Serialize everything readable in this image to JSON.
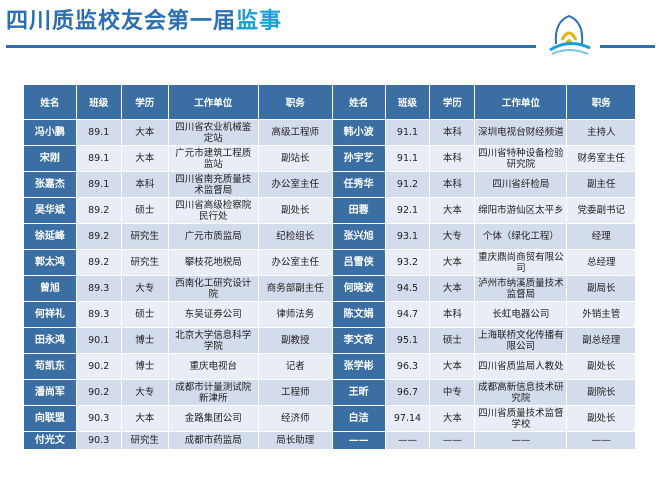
{
  "title": {
    "main": "四川质监校友会第一届",
    "highlight": "监事"
  },
  "headers": [
    "姓名",
    "班级",
    "学历",
    "工作单位",
    "职务",
    "姓名",
    "班级",
    "学历",
    "工作单位",
    "职务"
  ],
  "rows": [
    [
      "冯小鹏",
      "89.1",
      "大本",
      "四川省农业机械鉴定站",
      "高级工程师",
      "韩小波",
      "91.1",
      "本科",
      "深圳电视台财经频道",
      "主持人"
    ],
    [
      "宋刚",
      "89.1",
      "大本",
      "广元市建筑工程质监站",
      "副站长",
      "孙宇艺",
      "91.1",
      "本科",
      "四川省特种设备检验研究院",
      "财务室主任"
    ],
    [
      "张嘉杰",
      "89.1",
      "本科",
      "四川省南充质量技术监督局",
      "办公室主任",
      "任秀华",
      "91.2",
      "本科",
      "四川省纤检局",
      "副主任"
    ],
    [
      "吴华斌",
      "89.2",
      "硕士",
      "四川省高级检察院民行处",
      "副处长",
      "田蓉",
      "92.1",
      "大本",
      "绵阳市游仙区太平乡",
      "党委副书记"
    ],
    [
      "徐延峰",
      "89.2",
      "研究生",
      "广元市质监局",
      "纪检组长",
      "张兴旭",
      "93.1",
      "大专",
      "个体（绿化工程）",
      "经理"
    ],
    [
      "郭太鸿",
      "89.2",
      "研究生",
      "攀枝花地税局",
      "办公室主任",
      "吕雪侠",
      "93.2",
      "大本",
      "重庆鼎尚商贸有限公司",
      "总经理"
    ],
    [
      "曾旭",
      "89.3",
      "大专",
      "西南化工研究设计院",
      "商务部副主任",
      "何晓波",
      "94.5",
      "大本",
      "泸州市纳溪质量技术监督局",
      "副局长"
    ],
    [
      "何祥礼",
      "89.3",
      "硕士",
      "东吴证券公司",
      "律师法务",
      "陈文娟",
      "94.7",
      "本科",
      "长虹电器公司",
      "外销主管"
    ],
    [
      "田永鸿",
      "90.1",
      "博士",
      "北京大学信息科学学院",
      "副教授",
      "李文奇",
      "95.1",
      "硕士",
      "上海联桥文化传播有限公司",
      "副总经理"
    ],
    [
      "苟凯东",
      "90.2",
      "博士",
      "重庆电视台",
      "记者",
      "张学彬",
      "96.3",
      "大本",
      "四川省质监局人教处",
      "副处长"
    ],
    [
      "潘尚军",
      "90.2",
      "大专",
      "成都市计量测试院新津所",
      "工程师",
      "王昕",
      "96.7",
      "中专",
      "成都高新信息技术研究院",
      "副院长"
    ],
    [
      "向联盟",
      "90.3",
      "大本",
      "金路集团公司",
      "经济师",
      "白洁",
      "97.14",
      "大本",
      "四川省质量技术监督学校",
      "副处长"
    ],
    [
      "付光文",
      "90.3",
      "研究生",
      "成都市药监局",
      "局长助理",
      "——",
      "——",
      "——",
      "——",
      "——"
    ]
  ]
}
